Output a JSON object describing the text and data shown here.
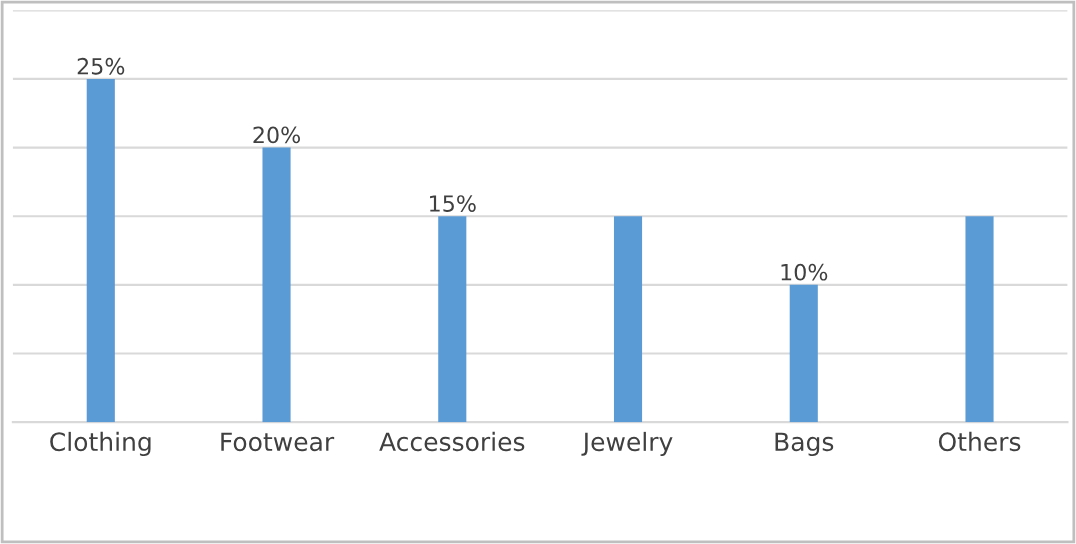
{
  "chart_data": {
    "type": "bar",
    "categories": [
      "Clothing",
      "Footwear",
      "Accessories",
      "Jewelry",
      "Bags",
      "Others"
    ],
    "values": [
      25,
      20,
      15,
      15,
      10,
      15
    ],
    "value_labels": [
      "25%",
      "20%",
      "15%",
      null,
      "10%",
      null
    ],
    "color": "#5b9bd5",
    "ylim": [
      0,
      30
    ],
    "yticks": [
      {
        "value": 0,
        "label": null
      },
      {
        "value": 5,
        "label": null
      },
      {
        "value": 10,
        "label": null
      },
      {
        "value": 15,
        "label": null
      },
      {
        "value": 20,
        "label": null
      },
      {
        "value": 25,
        "label": null
      },
      {
        "value": 30,
        "label": null
      }
    ],
    "tick_labels": "x",
    "grid": "y",
    "legend": false
  }
}
